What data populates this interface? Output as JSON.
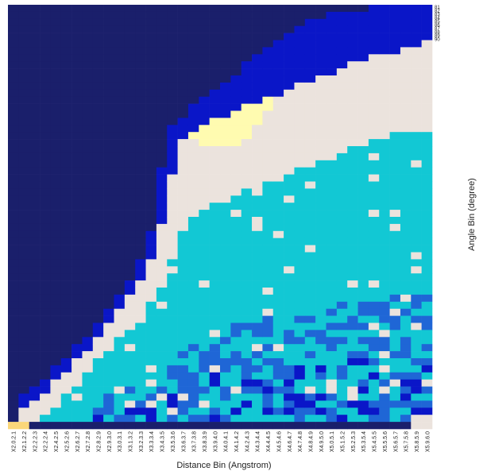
{
  "chart_data": {
    "type": "heatmap",
    "title": "",
    "xlabel": "Distance Bin (Angstrom)",
    "ylabel": "Angle Bin (degree)",
    "x_tick_labels": [
      "X2.0.2.1",
      "X2.1.2.2",
      "X2.2.2.3",
      "X2.2.2.4",
      "X2.4.2.5",
      "X2.5.2.6",
      "X2.6.2.7",
      "X2.7.2.8",
      "X2.8.2.9",
      "X2.9.3.0",
      "X3.0.3.1",
      "X3.1.3.2",
      "X3.2.3.3",
      "X3.3.3.4",
      "X3.4.3.5",
      "X3.5.3.6",
      "X3.6.3.7",
      "X3.7.3.8",
      "X3.8.3.9",
      "X3.9.4.0",
      "X4.0.4.1",
      "X4.1.4.2",
      "X4.2.4.3",
      "X4.3.4.4",
      "X4.4.4.5",
      "X4.5.4.6",
      "X4.6.4.7",
      "X4.7.4.8",
      "X4.8.4.9",
      "X4.9.5.0",
      "X5.0.5.1",
      "X5.1.5.2",
      "X5.2.5.3",
      "X5.3.5.4",
      "X5.4.5.5",
      "X5.5.5.6",
      "X5.6.5.7",
      "X5.7.5.8",
      "X5.8.5.9",
      "X5.9.6.0"
    ],
    "y_tick_labels": [
      "81",
      "82",
      "83",
      "84",
      "85",
      "86",
      "87",
      "88",
      "89",
      "90"
    ],
    "grid": false,
    "legend": "none",
    "palette": {
      "1": "#1a1f6b",
      "2": "#0a16c8",
      "3": "#1f66d6",
      "4": "#12c8d4",
      "5": "#ebe3dd",
      "6": "#fffbb0",
      "7": "#fbd77a"
    },
    "column_boundaries": [
      [
        100,
        100,
        100,
        100,
        100
      ],
      [
        92,
        95,
        100,
        100,
        100
      ],
      [
        90,
        94,
        99,
        100,
        100
      ],
      [
        88,
        92,
        97,
        100,
        100
      ],
      [
        85,
        89,
        95,
        99,
        100
      ],
      [
        83,
        87,
        92,
        98,
        100
      ],
      [
        80,
        84,
        90,
        96,
        100
      ],
      [
        78,
        81,
        87,
        94,
        100
      ],
      [
        75,
        78,
        84,
        92,
        100
      ],
      [
        72,
        75,
        82,
        90,
        100
      ],
      [
        69,
        72,
        79,
        88,
        100
      ],
      [
        65,
        69,
        76,
        86,
        100
      ],
      [
        60,
        65,
        73,
        84,
        100
      ],
      [
        53,
        60,
        70,
        82,
        100
      ],
      [
        38,
        52,
        66,
        80,
        100
      ],
      [
        28,
        40,
        60,
        78,
        100
      ],
      [
        26,
        32,
        54,
        76,
        100
      ],
      [
        24,
        30,
        50,
        75,
        100
      ],
      [
        22,
        28,
        48,
        74,
        100
      ],
      [
        20,
        27,
        47,
        73,
        100
      ],
      [
        18,
        26,
        46,
        72,
        100
      ],
      [
        16,
        25,
        45,
        71,
        100
      ],
      [
        14,
        24,
        44,
        70,
        100
      ],
      [
        12,
        23,
        43,
        70,
        100
      ],
      [
        10,
        22,
        42,
        70,
        100
      ],
      [
        8,
        21,
        41,
        70,
        100
      ],
      [
        6,
        20,
        40,
        70,
        100
      ],
      [
        5,
        19,
        39,
        69,
        100
      ],
      [
        4,
        18,
        38,
        69,
        100
      ],
      [
        3,
        17,
        37,
        68,
        100
      ],
      [
        2,
        16,
        36,
        68,
        100
      ],
      [
        2,
        15,
        35,
        67,
        100
      ],
      [
        1,
        14,
        34,
        67,
        100
      ],
      [
        1,
        13,
        33,
        66,
        100
      ],
      [
        0,
        12,
        32,
        66,
        100
      ],
      [
        0,
        12,
        31,
        66,
        100
      ],
      [
        0,
        11,
        30,
        66,
        100
      ],
      [
        0,
        10,
        30,
        65,
        100
      ],
      [
        0,
        10,
        30,
        65,
        100
      ],
      [
        0,
        9,
        30,
        65,
        100
      ]
    ]
  }
}
